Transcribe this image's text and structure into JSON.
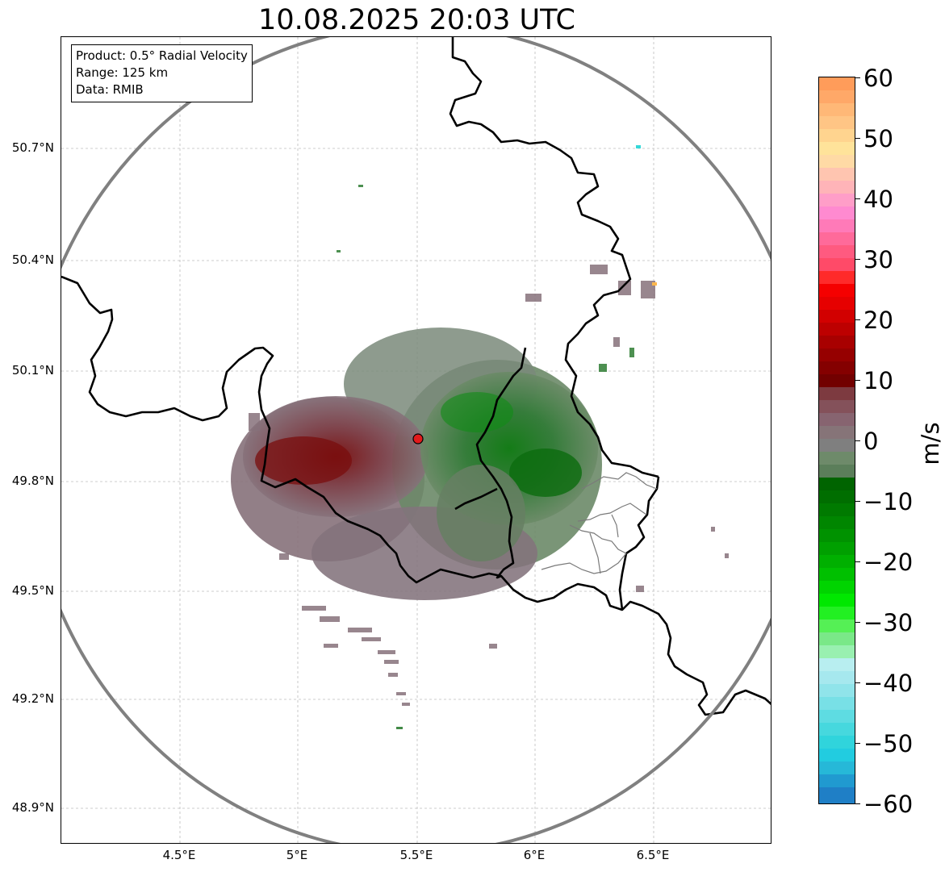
{
  "title": "10.08.2025 20:03 UTC",
  "info_box": {
    "product": "Product: 0.5° Radial Velocity",
    "range": "Range: 125 km",
    "source": "Data: RMIB"
  },
  "lat_labels": [
    "50.7°N",
    "50.4°N",
    "50.1°N",
    "49.8°N",
    "49.5°N",
    "49.2°N",
    "48.9°N"
  ],
  "lon_labels": [
    "4.5°E",
    "5°E",
    "5.5°E",
    "6°E",
    "6.5°E"
  ],
  "colorbar": {
    "unit": "m/s",
    "ticks": [
      "60",
      "50",
      "40",
      "30",
      "20",
      "10",
      "0",
      "−10",
      "−20",
      "−30",
      "−40",
      "−50",
      "−60"
    ],
    "range": [
      -60,
      60
    ]
  },
  "colors": {
    "range_ring": "#808080",
    "border": "#000000",
    "radar_site": "#e31a1c",
    "inbound_green": "#006400",
    "outbound_red": "#8b0000",
    "zero_gray": "#7f7f7f"
  },
  "map": {
    "radar_site": "radar-site-marker",
    "range_ring": "125 km range ring"
  }
}
